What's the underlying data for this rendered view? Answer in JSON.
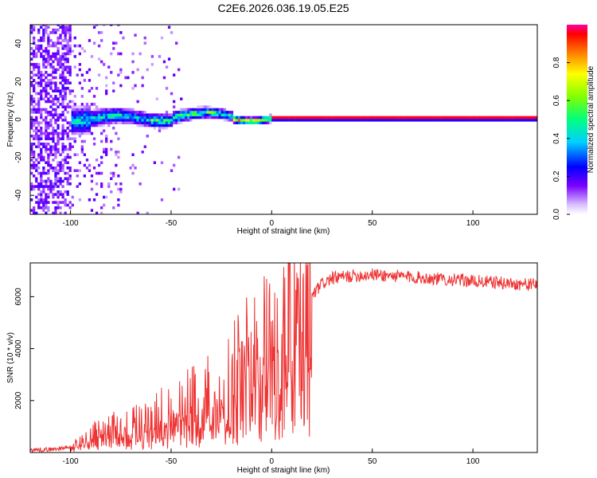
{
  "figure_title": "C2E6.2026.036.19.05.E25",
  "chart_data": [
    {
      "type": "heatmap",
      "title": "C2E6.2026.036.19.05.E25",
      "xlabel": "Height of straight line (km)",
      "ylabel": "Frequency (Hz)",
      "xlim": [
        -120,
        132
      ],
      "ylim": [
        -50,
        50
      ],
      "xticks": [
        -100,
        -50,
        0,
        50,
        100
      ],
      "yticks": [
        -40,
        -20,
        0,
        20,
        40
      ],
      "description_of_data": "Spectral amplitude concentrated near 0 Hz; broad noisy spread below -80 km, converging to a narrow high-amplitude line near 0 Hz above 0 km.",
      "colorbar": {
        "label": "Normalized spectral amplitude",
        "range": [
          0.0,
          1.0
        ],
        "ticks": [
          0.0,
          0.2,
          0.4,
          0.6,
          0.8
        ],
        "tick_labels": [
          "0.0",
          "0.2",
          "0.4",
          "0.6",
          "0.8"
        ]
      }
    },
    {
      "type": "line",
      "xlabel": "Height of straight line (km)",
      "ylabel": "SNR (10 * v/v)",
      "xlim": [
        -120,
        132
      ],
      "ylim": [
        0,
        7300
      ],
      "xticks": [
        -100,
        -50,
        0,
        50,
        100
      ],
      "yticks": [
        2000,
        4000,
        6000
      ],
      "color": "#ee3333",
      "series": [
        {
          "name": "SNR",
          "x": [
            -120,
            -110,
            -100,
            -95,
            -90,
            -85,
            -80,
            -75,
            -70,
            -65,
            -60,
            -55,
            -50,
            -45,
            -40,
            -35,
            -30,
            -25,
            -20,
            -15,
            -10,
            -5,
            0,
            5,
            8,
            10,
            12,
            15,
            20,
            25,
            30,
            40,
            50,
            60,
            70,
            80,
            90,
            100,
            110,
            120,
            132
          ],
          "values": [
            100,
            120,
            200,
            400,
            600,
            700,
            800,
            900,
            1000,
            1100,
            1200,
            1350,
            1500,
            1650,
            1800,
            1950,
            2100,
            2300,
            2600,
            3000,
            3400,
            3800,
            4300,
            4700,
            5000,
            4300,
            4400,
            5200,
            6000,
            6500,
            6700,
            6800,
            6850,
            6800,
            6750,
            6700,
            6650,
            6600,
            6550,
            6500,
            6450
          ]
        }
      ]
    }
  ]
}
